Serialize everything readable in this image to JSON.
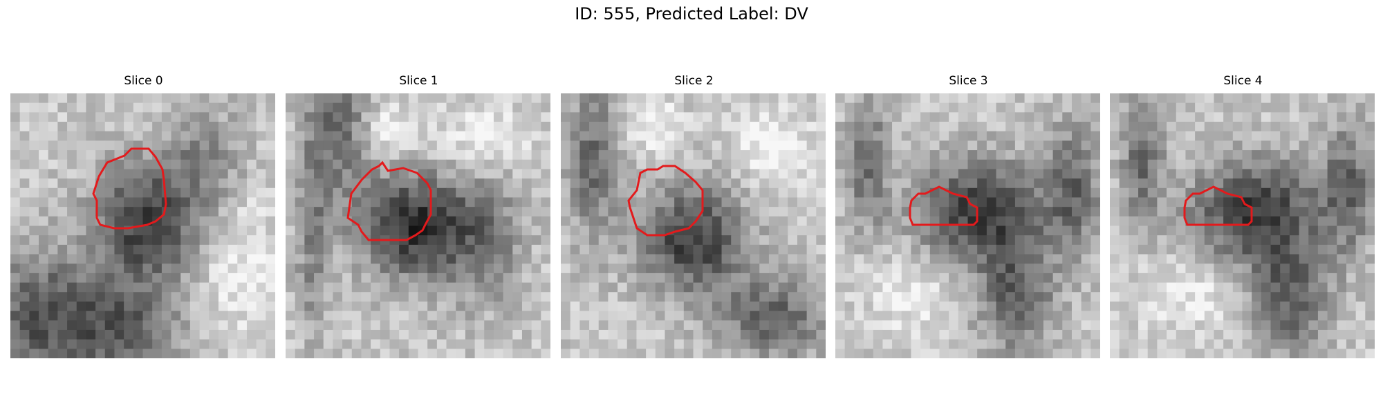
{
  "figure": {
    "title": "ID: 555, Predicted Label: DV",
    "panels": [
      {
        "title": "Slice 0",
        "seed": 11,
        "mode": "a"
      },
      {
        "title": "Slice 1",
        "seed": 23,
        "mode": "b"
      },
      {
        "title": "Slice 2",
        "seed": 37,
        "mode": "c"
      },
      {
        "title": "Slice 3",
        "seed": 41,
        "mode": "d"
      },
      {
        "title": "Slice 4",
        "seed": 53,
        "mode": "d"
      }
    ],
    "contour_color": "#e31a1c"
  }
}
